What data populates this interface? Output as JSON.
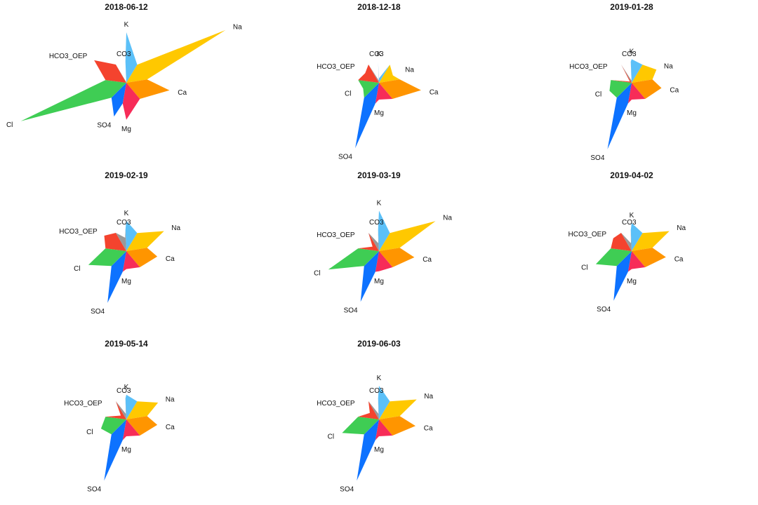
{
  "chart_data": {
    "type": "stiff-star",
    "ions": [
      "K",
      "Na",
      "Ca",
      "Mg",
      "SO4",
      "Cl",
      "HCO3_OEP",
      "CO3"
    ],
    "colors": {
      "K": "#5bc0f8",
      "Na": "#ffc800",
      "Ca": "#ff9500",
      "Mg": "#f72c58",
      "SO4": "#0d72ff",
      "Cl": "#3fcd54",
      "HCO3_OEP": "#f4432e",
      "CO3": "#999999"
    },
    "panels": [
      {
        "title": "2018-06-12",
        "values": {
          "K": 0.45,
          "Na": 1.0,
          "Ca": 0.39,
          "Mg": 0.33,
          "SO4": 0.32,
          "Cl": 1.0,
          "HCO3_OEP": 0.35,
          "CO3": 0.0
        }
      },
      {
        "title": "2018-12-18",
        "values": {
          "K": 0.04,
          "Na": 0.14,
          "Ca": 0.38,
          "Mg": 0.15,
          "SO4": 0.62,
          "Cl": 0.15,
          "HCO3_OEP": 0.15,
          "CO3": 0.02
        }
      },
      {
        "title": "2019-01-28",
        "values": {
          "K": 0.21,
          "Na": 0.25,
          "Ca": 0.27,
          "Mg": 0.15,
          "SO4": 0.63,
          "Cl": 0.21,
          "HCO3_OEP": 0.02,
          "CO3": 0.02
        }
      },
      {
        "title": "2019-02-19",
        "values": {
          "K": 0.27,
          "Na": 0.38,
          "Ca": 0.28,
          "Mg": 0.16,
          "SO4": 0.49,
          "Cl": 0.36,
          "HCO3_OEP": 0.24,
          "CO3": 0.12
        }
      },
      {
        "title": "2019-03-19",
        "values": {
          "K": 0.36,
          "Na": 0.57,
          "Ca": 0.32,
          "Mg": 0.18,
          "SO4": 0.48,
          "Cl": 0.48,
          "HCO3_OEP": 0.07,
          "CO3": 0.07
        }
      },
      {
        "title": "2019-04-02",
        "values": {
          "K": 0.25,
          "Na": 0.38,
          "Ca": 0.31,
          "Mg": 0.16,
          "SO4": 0.47,
          "Cl": 0.34,
          "HCO3_OEP": 0.2,
          "CO3": 0.07
        }
      },
      {
        "title": "2019-05-14",
        "values": {
          "K": 0.22,
          "Na": 0.32,
          "Ca": 0.28,
          "Mg": 0.15,
          "SO4": 0.58,
          "Cl": 0.24,
          "HCO3_OEP": 0.06,
          "CO3": 0.05
        }
      },
      {
        "title": "2019-06-03",
        "values": {
          "K": 0.3,
          "Na": 0.38,
          "Ca": 0.33,
          "Mg": 0.15,
          "SO4": 0.58,
          "Cl": 0.35,
          "HCO3_OEP": 0.1,
          "CO3": 0.05
        }
      }
    ]
  }
}
